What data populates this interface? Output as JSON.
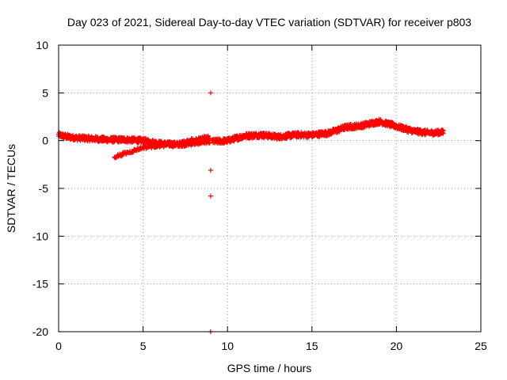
{
  "chart_data": {
    "type": "scatter",
    "title": "Day 023 of 2021, Sidereal Day-to-day VTEC variation (SDTVAR) for receiver p803",
    "xlabel": "GPS time / hours",
    "ylabel": "SDTVAR / TECUs",
    "xlim": [
      0,
      25
    ],
    "ylim": [
      -20,
      10
    ],
    "xticks": [
      0,
      5,
      10,
      15,
      20,
      25
    ],
    "yticks": [
      -20,
      -15,
      -10,
      -5,
      0,
      5,
      10
    ],
    "grid": true,
    "marker": "+",
    "color": "#ff0000",
    "series": [
      {
        "name": "p803",
        "trend": {
          "x": [
            0.0,
            0.5,
            1.0,
            2.0,
            3.0,
            4.0,
            5.0,
            6.0,
            7.0,
            8.0,
            8.9,
            9.1,
            10.0,
            11.0,
            12.0,
            13.0,
            14.0,
            15.0,
            16.0,
            17.0,
            18.0,
            19.0,
            20.0,
            21.0,
            22.0,
            22.8
          ],
          "y": [
            0.6,
            0.4,
            0.3,
            0.2,
            0.1,
            0.1,
            0.0,
            -0.3,
            -0.4,
            -0.2,
            0.0,
            -0.1,
            0.0,
            0.5,
            0.6,
            0.4,
            0.6,
            0.6,
            0.8,
            1.4,
            1.6,
            2.0,
            1.5,
            1.0,
            0.8,
            0.9
          ]
        },
        "side_branch": {
          "x": [
            3.3,
            4.0,
            5.0,
            6.0,
            7.0,
            8.0,
            8.9
          ],
          "y": [
            -1.7,
            -1.3,
            -0.7,
            -0.5,
            -0.4,
            0.1,
            0.4
          ]
        },
        "outliers": {
          "x": [
            9.0,
            9.0,
            9.0,
            9.0
          ],
          "y": [
            5.0,
            -3.1,
            -5.8,
            -20.0
          ]
        }
      }
    ]
  }
}
